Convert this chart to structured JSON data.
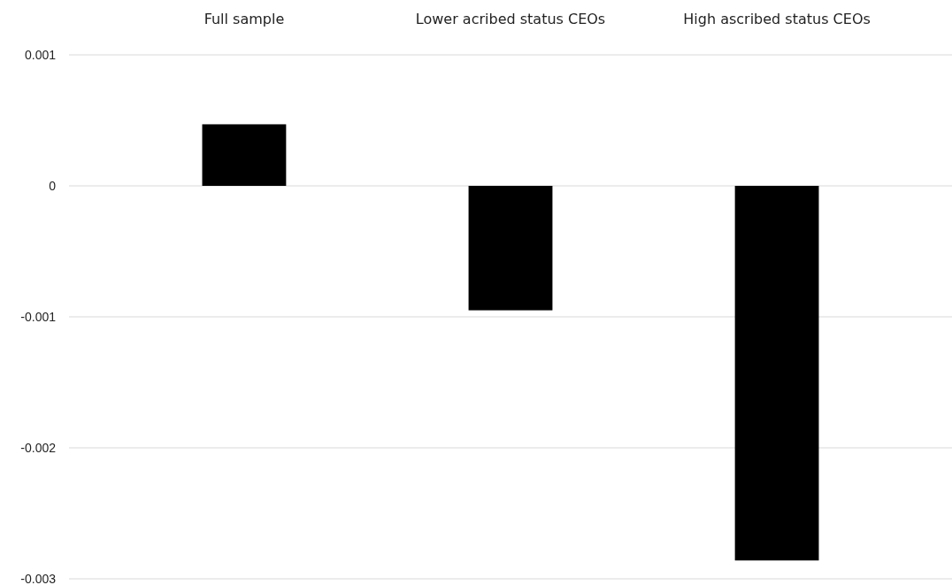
{
  "chart_data": {
    "type": "bar",
    "categories": [
      "Full sample",
      "Lower acribed status CEOs",
      "High ascribed status CEOs"
    ],
    "values": [
      0.00047,
      -0.00095,
      -0.00286
    ],
    "color": "#000000",
    "ylim": [
      -0.003,
      0.001
    ],
    "yticks": [
      0.001,
      0,
      -0.001,
      -0.002,
      -0.003
    ],
    "grid": "y"
  }
}
